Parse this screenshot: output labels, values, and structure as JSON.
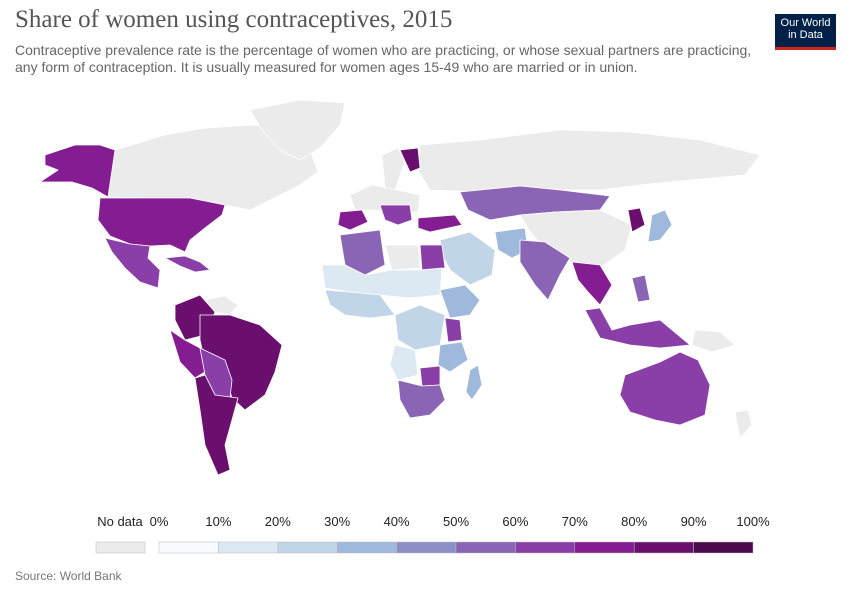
{
  "title": "Share of women using contraceptives, 2015",
  "subtitle": "Contraceptive prevalence rate is the percentage of women who are practicing, or whose sexual partners are practicing, any form of contraception. It is usually measured for women ages 15-49 who are married or in union.",
  "logo": {
    "line1": "Our World",
    "line2": "in Data"
  },
  "source": "Source: World Bank",
  "colors": {
    "no_data": "#ebebeb",
    "ocean": "#ffffff",
    "border": "#ffffff",
    "brand": "#002147",
    "brand_accent": "#ce261e"
  },
  "legend": {
    "no_data_label": "No data",
    "tick_labels": [
      "0%",
      "10%",
      "20%",
      "30%",
      "40%",
      "50%",
      "60%",
      "70%",
      "80%",
      "90%",
      "100%"
    ],
    "bins": [
      {
        "range": "0–10%",
        "color": "#f7fbff"
      },
      {
        "range": "10–20%",
        "color": "#dce9f2"
      },
      {
        "range": "20–30%",
        "color": "#c0d5e8"
      },
      {
        "range": "30–40%",
        "color": "#9eb9dc"
      },
      {
        "range": "40–50%",
        "color": "#8c8fc6"
      },
      {
        "range": "50–60%",
        "color": "#8a65b5"
      },
      {
        "range": "60–70%",
        "color": "#8a3ea8"
      },
      {
        "range": "70–80%",
        "color": "#841c92"
      },
      {
        "range": "80–90%",
        "color": "#6a0f6e"
      },
      {
        "range": "90–100%",
        "color": "#4b0a4c"
      }
    ]
  },
  "regions": [
    {
      "region": "Alaska",
      "value_bin": "70–80%"
    },
    {
      "region": "Canada",
      "value_bin": "no-data"
    },
    {
      "region": "Greenland",
      "value_bin": "no-data"
    },
    {
      "region": "United States",
      "value_bin": "70–80%"
    },
    {
      "region": "Mexico",
      "value_bin": "60–70%"
    },
    {
      "region": "Caribbean",
      "value_bin": "60–70%"
    },
    {
      "region": "Colombia / Venezuela",
      "value_bin": "80–90%"
    },
    {
      "region": "Peru",
      "value_bin": "70–80%"
    },
    {
      "region": "Brazil",
      "value_bin": "80–90%"
    },
    {
      "region": "Bolivia / Paraguay",
      "value_bin": "60–70%"
    },
    {
      "region": "Argentina / Chile",
      "value_bin": "80–90%"
    },
    {
      "region": "Guianas",
      "value_bin": "no-data"
    },
    {
      "region": "Russia",
      "value_bin": "no-data"
    },
    {
      "region": "Finland",
      "value_bin": "80–90%"
    },
    {
      "region": "Scandinavia",
      "value_bin": "no-data"
    },
    {
      "region": "Western Europe",
      "value_bin": "no-data"
    },
    {
      "region": "Spain",
      "value_bin": "70–80%"
    },
    {
      "region": "Balkans",
      "value_bin": "60–70%"
    },
    {
      "region": "Turkey",
      "value_bin": "70–80%"
    },
    {
      "region": "Kazakhstan / Mongolia",
      "value_bin": "50–60%"
    },
    {
      "region": "China",
      "value_bin": "no-data"
    },
    {
      "region": "Middle East",
      "value_bin": "20–30%"
    },
    {
      "region": "Pakistan / Afghanistan",
      "value_bin": "30–40%"
    },
    {
      "region": "India",
      "value_bin": "50–60%"
    },
    {
      "region": "Southeast Asia",
      "value_bin": "70–80%"
    },
    {
      "region": "Korea",
      "value_bin": "80–90%"
    },
    {
      "region": "Japan",
      "value_bin": "30–40%"
    },
    {
      "region": "Philippines",
      "value_bin": "50–60%"
    },
    {
      "region": "Indonesia",
      "value_bin": "60–70%"
    },
    {
      "region": "Papua New Guinea",
      "value_bin": "no-data"
    },
    {
      "region": "Australia",
      "value_bin": "60–70%"
    },
    {
      "region": "New Zealand",
      "value_bin": "no-data"
    },
    {
      "region": "Morocco / Algeria",
      "value_bin": "50–60%"
    },
    {
      "region": "Egypt",
      "value_bin": "60–70%"
    },
    {
      "region": "Libya",
      "value_bin": "no-data"
    },
    {
      "region": "Sahel",
      "value_bin": "10–20%"
    },
    {
      "region": "West Africa",
      "value_bin": "20–30%"
    },
    {
      "region": "Ethiopia / Horn",
      "value_bin": "30–40%"
    },
    {
      "region": "Central Africa",
      "value_bin": "20–30%"
    },
    {
      "region": "Kenya",
      "value_bin": "60–70%"
    },
    {
      "region": "East Africa",
      "value_bin": "30–40%"
    },
    {
      "region": "Zimbabwe",
      "value_bin": "60–70%"
    },
    {
      "region": "Southern Africa",
      "value_bin": "50–60%"
    },
    {
      "region": "Madagascar",
      "value_bin": "30–40%"
    },
    {
      "region": "Angola",
      "value_bin": "10–20%"
    }
  ]
}
